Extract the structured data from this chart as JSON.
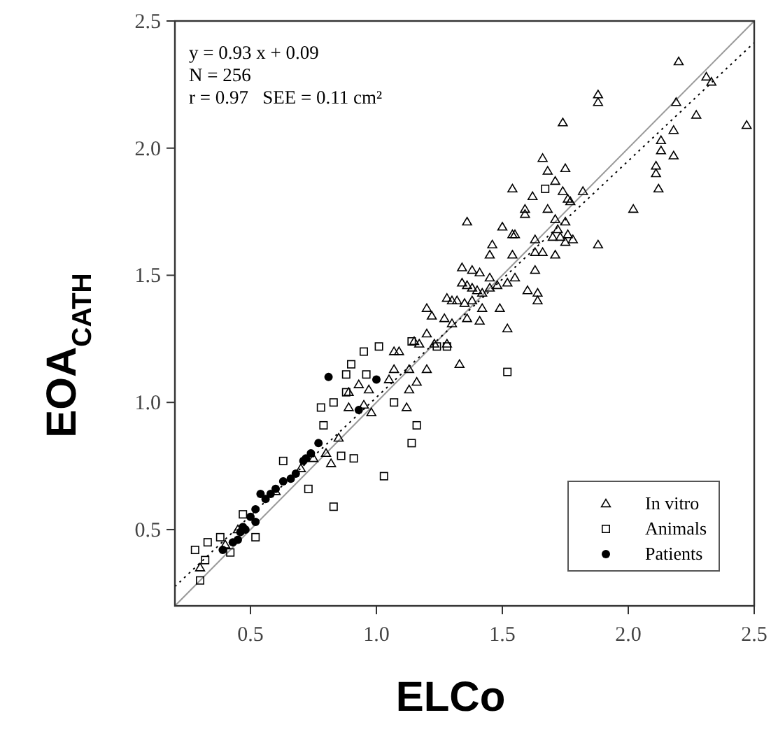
{
  "chart_data": {
    "type": "scatter",
    "xlabel": "ELCo",
    "ylabel": "EOA$_{CATH}$",
    "xlim": [
      0.2,
      2.5
    ],
    "ylim": [
      0.2,
      2.5
    ],
    "xticks": [
      {
        "value": 0.5,
        "label": "0.5"
      },
      {
        "value": 1,
        "label": "1.0"
      },
      {
        "value": 1.5,
        "label": "1.5"
      },
      {
        "value": 2,
        "label": "2.0"
      },
      {
        "value": 2.5,
        "label": "2.5"
      }
    ],
    "yticks": [
      {
        "value": 0.5,
        "label": "0.5"
      },
      {
        "value": 1,
        "label": "1.0"
      },
      {
        "value": 1.5,
        "label": "1.5"
      },
      {
        "value": 2,
        "label": "2.0"
      },
      {
        "value": 2.5,
        "label": "2.5"
      }
    ],
    "legend": "bottom right",
    "grid": false,
    "annotations": [
      "y = 0.93 x + 0.09",
      "N = 256",
      "r = 0.97   SEE = 0.11 cm²"
    ],
    "series": [
      {
        "type": "line",
        "color": "#999999",
        "line_style": "solid",
        "x": [
          0.2,
          2.5
        ],
        "values": [
          0.2,
          2.5
        ]
      },
      {
        "type": "line",
        "color": "#000000",
        "line_style": "dotted",
        "x": [
          0.2,
          2.5
        ],
        "values": [
          0.276,
          2.415
        ]
      },
      {
        "name": "In vitro",
        "color": "#000000",
        "marker": "triangle",
        "x": [
          2.2,
          2.31,
          2.33,
          1.88,
          1.88,
          1.74,
          2.47,
          2.19,
          2.27,
          2.18,
          2.13,
          2.13,
          2.18,
          2.11,
          2.11,
          2.12,
          2.02,
          1.66,
          1.68,
          1.75,
          1.71,
          1.54,
          1.62,
          1.74,
          1.76,
          1.82,
          1.77,
          1.59,
          1.59,
          1.68,
          1.36,
          1.71,
          1.72,
          1.75,
          1.76,
          1.7,
          1.73,
          1.75,
          1.78,
          1.5,
          1.54,
          1.55,
          1.63,
          1.88,
          1.46,
          1.45,
          1.54,
          1.63,
          1.66,
          1.71,
          1.34,
          1.38,
          1.41,
          1.45,
          1.55,
          1.63,
          1.6,
          1.64,
          1.64,
          1.34,
          1.36,
          1.38,
          1.4,
          1.42,
          1.45,
          1.48,
          1.52,
          1.28,
          1.3,
          1.32,
          1.35,
          1.38,
          1.42,
          1.49,
          1.2,
          1.22,
          1.27,
          1.3,
          1.36,
          1.41,
          1.52,
          1.2,
          1.23,
          1.28,
          1.15,
          1.17,
          1.09,
          1.07,
          1.33,
          0.93,
          0.97,
          0.89,
          0.95,
          0.98,
          1.05,
          1.07,
          1.13,
          1.2,
          1.16,
          1.13,
          1.12,
          0.89,
          0.82,
          0.85,
          0.8,
          0.75,
          0.7,
          0.6,
          0.45,
          0.3,
          0.4
        ],
        "values": [
          2.34,
          2.28,
          2.26,
          2.21,
          2.18,
          2.1,
          2.09,
          2.18,
          2.13,
          2.07,
          2.03,
          1.99,
          1.97,
          1.93,
          1.9,
          1.84,
          1.76,
          1.96,
          1.91,
          1.92,
          1.87,
          1.84,
          1.81,
          1.83,
          1.8,
          1.83,
          1.79,
          1.76,
          1.74,
          1.76,
          1.71,
          1.72,
          1.68,
          1.71,
          1.66,
          1.65,
          1.65,
          1.63,
          1.64,
          1.69,
          1.66,
          1.66,
          1.64,
          1.62,
          1.62,
          1.58,
          1.58,
          1.59,
          1.59,
          1.58,
          1.53,
          1.52,
          1.51,
          1.49,
          1.49,
          1.52,
          1.44,
          1.43,
          1.4,
          1.47,
          1.46,
          1.45,
          1.44,
          1.43,
          1.45,
          1.46,
          1.47,
          1.41,
          1.4,
          1.4,
          1.39,
          1.4,
          1.37,
          1.37,
          1.37,
          1.34,
          1.33,
          1.31,
          1.33,
          1.32,
          1.29,
          1.27,
          1.23,
          1.23,
          1.24,
          1.23,
          1.2,
          1.2,
          1.15,
          1.07,
          1.05,
          1.04,
          0.99,
          0.96,
          1.09,
          1.13,
          1.13,
          1.13,
          1.08,
          1.05,
          0.98,
          0.98,
          0.76,
          0.86,
          0.8,
          0.78,
          0.74,
          0.65,
          0.5,
          0.35,
          0.44
        ]
      },
      {
        "name": "Animals",
        "color": "#000000",
        "marker": "square",
        "x": [
          1.67,
          1.01,
          1.14,
          1.24,
          1.28,
          1.52,
          0.88,
          0.96,
          0.83,
          0.78,
          1.07,
          1.16,
          1.14,
          0.88,
          0.79,
          0.86,
          0.91,
          0.63,
          1.03,
          0.73,
          0.83,
          0.47,
          0.38,
          0.52,
          0.42,
          0.28,
          0.3,
          0.32,
          0.33,
          0.95,
          0.9
        ],
        "values": [
          1.84,
          1.22,
          1.24,
          1.22,
          1.22,
          1.12,
          1.11,
          1.11,
          1.0,
          0.98,
          1.0,
          0.91,
          0.84,
          1.04,
          0.91,
          0.79,
          0.78,
          0.77,
          0.71,
          0.66,
          0.59,
          0.56,
          0.47,
          0.47,
          0.41,
          0.42,
          0.3,
          0.38,
          0.45,
          1.2,
          1.15
        ]
      },
      {
        "name": "Patients",
        "color": "#000000",
        "marker": "circle",
        "x": [
          0.81,
          1.0,
          0.93,
          0.39,
          0.43,
          0.46,
          0.47,
          0.52,
          0.52,
          0.56,
          0.58,
          0.63,
          0.68,
          0.71,
          0.74,
          0.77,
          0.54,
          0.5,
          0.45,
          0.48,
          0.6,
          0.66,
          0.72
        ],
        "values": [
          1.1,
          1.09,
          0.97,
          0.42,
          0.45,
          0.49,
          0.51,
          0.53,
          0.58,
          0.62,
          0.64,
          0.69,
          0.72,
          0.77,
          0.8,
          0.84,
          0.64,
          0.55,
          0.46,
          0.5,
          0.66,
          0.7,
          0.78
        ]
      }
    ]
  }
}
